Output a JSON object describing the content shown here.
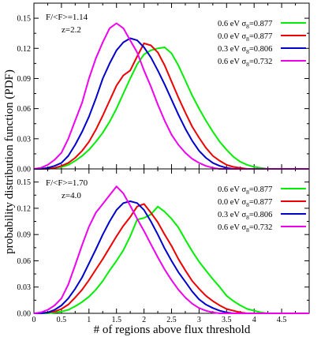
{
  "chart_data": {
    "type": "line",
    "xlabel": "# of regions above flux threshold",
    "ylabel": "probability distribution function (PDF)",
    "xlim": [
      0,
      5
    ],
    "x_ticks": [
      0,
      0.5,
      1,
      1.5,
      2,
      2.5,
      3,
      3.5,
      4,
      4.5
    ],
    "x_tick_labels": [
      "0",
      "0.5",
      "1",
      "1.5",
      "2",
      "2.5",
      "3",
      "3.5",
      "4",
      "4.5"
    ],
    "grid": false,
    "legend_position": "top-right",
    "x": [
      0,
      0.125,
      0.25,
      0.375,
      0.5,
      0.625,
      0.75,
      0.875,
      1,
      1.125,
      1.25,
      1.375,
      1.5,
      1.625,
      1.75,
      1.875,
      2,
      2.125,
      2.25,
      2.375,
      2.5,
      2.625,
      2.75,
      2.875,
      3,
      3.125,
      3.25,
      3.375,
      3.5,
      3.625,
      3.75,
      3.875,
      4,
      4.125,
      4.25,
      4.375,
      4.5,
      4.625,
      4.75,
      4.875,
      5
    ],
    "panels": [
      {
        "annotation_line1": "F/<F>=1.14",
        "annotation_line2": "z=2.2",
        "ylim": [
          0,
          0.165
        ],
        "y_ticks": [
          0,
          0.03,
          0.06,
          0.09,
          0.12,
          0.15
        ],
        "y_tick_labels": [
          "0.00",
          "0.03",
          "0.06",
          "0.09",
          "0.12",
          "0.15"
        ],
        "series": [
          {
            "label_prefix": "0.6 eV",
            "sigma_value": "=0.877",
            "color": "#00ee00",
            "values": [
              0,
              0,
              0,
              0.001,
              0.002,
              0.004,
              0.008,
              0.013,
              0.019,
              0.027,
              0.036,
              0.047,
              0.06,
              0.075,
              0.09,
              0.104,
              0.114,
              0.118,
              0.12,
              0.121,
              0.115,
              0.103,
              0.088,
              0.073,
              0.06,
              0.048,
              0.037,
              0.027,
              0.019,
              0.012,
              0.007,
              0.004,
              0.002,
              0.001,
              0,
              0,
              0,
              0,
              0,
              0,
              0
            ]
          },
          {
            "label_prefix": "0.0 eV",
            "sigma_value": "=0.877",
            "color": "#ee0000",
            "values": [
              0,
              0,
              0,
              0.001,
              0.003,
              0.006,
              0.011,
              0.018,
              0.027,
              0.039,
              0.053,
              0.068,
              0.083,
              0.093,
              0.098,
              0.112,
              0.125,
              0.123,
              0.116,
              0.103,
              0.087,
              0.071,
              0.056,
              0.042,
              0.031,
              0.021,
              0.013,
              0.008,
              0.004,
              0.002,
              0.001,
              0,
              0,
              0,
              0,
              0,
              0,
              0,
              0,
              0,
              0
            ]
          },
          {
            "label_prefix": "0.3 eV",
            "sigma_value": "=0.806",
            "color": "#0000cc",
            "values": [
              0,
              0,
              0.001,
              0.003,
              0.006,
              0.013,
              0.024,
              0.037,
              0.052,
              0.07,
              0.09,
              0.105,
              0.118,
              0.126,
              0.13,
              0.128,
              0.121,
              0.111,
              0.098,
              0.084,
              0.069,
              0.054,
              0.04,
              0.028,
              0.018,
              0.011,
              0.006,
              0.003,
              0.001,
              0,
              0,
              0,
              0,
              0,
              0,
              0,
              0,
              0,
              0,
              0,
              0
            ]
          },
          {
            "label_prefix": "0.6 eV",
            "sigma_value": "=0.732",
            "color": "#ee00ee",
            "values": [
              0,
              0.001,
              0.004,
              0.009,
              0.016,
              0.03,
              0.048,
              0.066,
              0.09,
              0.11,
              0.126,
              0.14,
              0.145,
              0.14,
              0.128,
              0.116,
              0.098,
              0.082,
              0.064,
              0.048,
              0.034,
              0.024,
              0.016,
              0.01,
              0.006,
              0.003,
              0.001,
              0,
              0,
              0,
              0,
              0,
              0,
              0,
              0,
              0,
              0,
              0,
              0,
              0,
              0
            ]
          }
        ]
      },
      {
        "annotation_line1": "F/<F>=1.70",
        "annotation_line2": "z=4.0",
        "ylim": [
          0,
          0.165
        ],
        "y_ticks": [
          0,
          0.03,
          0.06,
          0.09,
          0.12,
          0.15
        ],
        "y_tick_labels": [
          "0.00",
          "0.03",
          "0.06",
          "0.09",
          "0.12",
          "0.15"
        ],
        "series": [
          {
            "label_prefix": "0.6 eV",
            "sigma_value": "=0.877",
            "color": "#00ee00",
            "values": [
              0,
              0,
              0,
              0.001,
              0.002,
              0.004,
              0.008,
              0.013,
              0.019,
              0.027,
              0.037,
              0.049,
              0.06,
              0.072,
              0.088,
              0.107,
              0.109,
              0.113,
              0.122,
              0.116,
              0.108,
              0.098,
              0.084,
              0.071,
              0.059,
              0.049,
              0.039,
              0.03,
              0.02,
              0.014,
              0.009,
              0.005,
              0.003,
              0.001,
              0,
              0,
              0,
              0,
              0,
              0,
              0
            ]
          },
          {
            "label_prefix": "0.0 eV",
            "sigma_value": "=0.877",
            "color": "#ee0000",
            "values": [
              0,
              0,
              0.001,
              0.002,
              0.005,
              0.01,
              0.018,
              0.027,
              0.038,
              0.05,
              0.062,
              0.075,
              0.088,
              0.1,
              0.11,
              0.122,
              0.125,
              0.115,
              0.104,
              0.09,
              0.077,
              0.062,
              0.049,
              0.037,
              0.028,
              0.02,
              0.014,
              0.009,
              0.005,
              0.003,
              0.001,
              0,
              0,
              0,
              0,
              0,
              0,
              0,
              0,
              0,
              0
            ]
          },
          {
            "label_prefix": "0.3 eV",
            "sigma_value": "=0.806",
            "color": "#0000cc",
            "values": [
              0,
              0,
              0.001,
              0.004,
              0.009,
              0.017,
              0.028,
              0.041,
              0.057,
              0.073,
              0.09,
              0.105,
              0.118,
              0.126,
              0.128,
              0.126,
              0.118,
              0.105,
              0.09,
              0.074,
              0.06,
              0.047,
              0.036,
              0.025,
              0.016,
              0.01,
              0.006,
              0.003,
              0.001,
              0,
              0,
              0,
              0,
              0,
              0,
              0,
              0,
              0,
              0,
              0,
              0
            ]
          },
          {
            "label_prefix": "0.6 eV",
            "sigma_value": "=0.732",
            "color": "#ee00ee",
            "values": [
              0,
              0.001,
              0.004,
              0.009,
              0.017,
              0.033,
              0.055,
              0.078,
              0.099,
              0.115,
              0.125,
              0.135,
              0.145,
              0.137,
              0.123,
              0.108,
              0.094,
              0.079,
              0.064,
              0.05,
              0.038,
              0.027,
              0.018,
              0.011,
              0.006,
              0.003,
              0.001,
              0,
              0,
              0,
              0,
              0,
              0,
              0,
              0,
              0,
              0,
              0,
              0,
              0,
              0
            ]
          }
        ]
      }
    ]
  }
}
